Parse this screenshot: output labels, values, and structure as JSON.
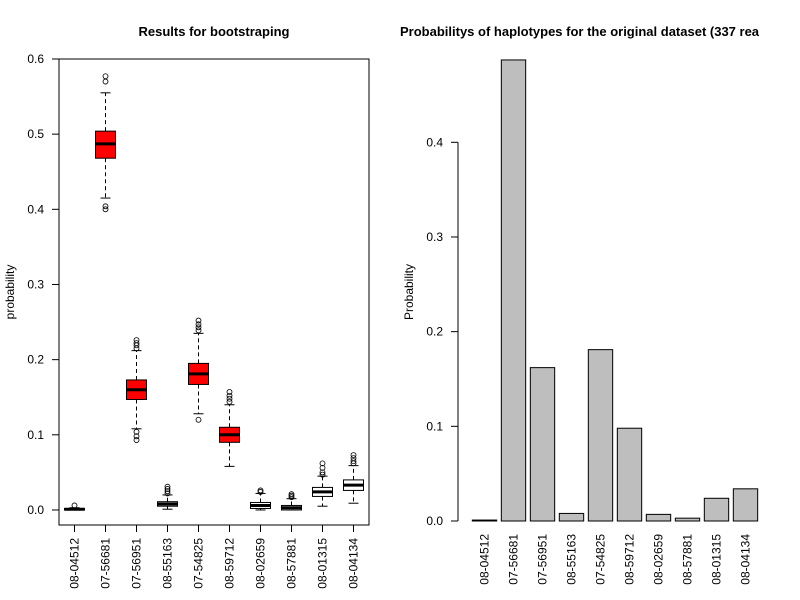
{
  "chart_data": [
    {
      "type": "box",
      "title": "Results for bootstraping",
      "xlabel": "",
      "ylabel": "probability",
      "ylim": [
        -0.02,
        0.6
      ],
      "yticks": [
        0.0,
        0.1,
        0.2,
        0.3,
        0.4,
        0.5,
        0.6
      ],
      "ytick_labels": [
        "0.0",
        "0.1",
        "0.2",
        "0.3",
        "0.4",
        "0.5",
        "0.6"
      ],
      "categories": [
        "08-04512",
        "07-56681",
        "07-56951",
        "08-55163",
        "07-54825",
        "08-59712",
        "08-02659",
        "08-57881",
        "08-01315",
        "08-04134"
      ],
      "fill_colors": [
        "#ffffff",
        "#ff0000",
        "#ff0000",
        "#ffffff",
        "#ff0000",
        "#ff0000",
        "#ffffff",
        "#ffffff",
        "#ffffff",
        "#ffffff"
      ],
      "boxes": [
        {
          "whisker_low": 0.0,
          "q1": 0.0,
          "median": 0.001,
          "q3": 0.002,
          "whisker_high": 0.003,
          "outliers": [
            0.006
          ]
        },
        {
          "whisker_low": 0.415,
          "q1": 0.468,
          "median": 0.487,
          "q3": 0.504,
          "whisker_high": 0.555,
          "outliers": [
            0.4,
            0.404,
            0.57,
            0.577
          ]
        },
        {
          "whisker_low": 0.108,
          "q1": 0.147,
          "median": 0.16,
          "q3": 0.173,
          "whisker_high": 0.212,
          "outliers": [
            0.093,
            0.098,
            0.104,
            0.215,
            0.219,
            0.222,
            0.226
          ]
        },
        {
          "whisker_low": 0.001,
          "q1": 0.005,
          "median": 0.008,
          "q3": 0.011,
          "whisker_high": 0.02,
          "outliers": [
            0.022,
            0.025,
            0.028,
            0.031
          ]
        },
        {
          "whisker_low": 0.128,
          "q1": 0.167,
          "median": 0.181,
          "q3": 0.195,
          "whisker_high": 0.235,
          "outliers": [
            0.12,
            0.239,
            0.243,
            0.247,
            0.252
          ]
        },
        {
          "whisker_low": 0.058,
          "q1": 0.09,
          "median": 0.1,
          "q3": 0.11,
          "whisker_high": 0.14,
          "outliers": [
            0.144,
            0.148,
            0.152,
            0.157
          ]
        },
        {
          "whisker_low": 0.0,
          "q1": 0.002,
          "median": 0.006,
          "q3": 0.01,
          "whisker_high": 0.022,
          "outliers": [
            0.024,
            0.026
          ]
        },
        {
          "whisker_low": 0.0,
          "q1": 0.0,
          "median": 0.003,
          "q3": 0.006,
          "whisker_high": 0.015,
          "outliers": [
            0.017,
            0.019,
            0.021
          ]
        },
        {
          "whisker_low": 0.005,
          "q1": 0.018,
          "median": 0.024,
          "q3": 0.03,
          "whisker_high": 0.045,
          "outliers": [
            0.047,
            0.05,
            0.056,
            0.062
          ]
        },
        {
          "whisker_low": 0.009,
          "q1": 0.026,
          "median": 0.033,
          "q3": 0.04,
          "whisker_high": 0.059,
          "outliers": [
            0.062,
            0.065,
            0.069,
            0.073
          ]
        }
      ]
    },
    {
      "type": "bar",
      "title": "Probabilitys of haplotypes for the original dataset (337 rea",
      "xlabel": "",
      "ylabel": "Probability",
      "ylim": [
        0.0,
        0.488
      ],
      "yticks": [
        0.0,
        0.1,
        0.2,
        0.3,
        0.4
      ],
      "ytick_labels": [
        "0.0",
        "0.1",
        "0.2",
        "0.3",
        "0.4"
      ],
      "categories": [
        "08-04512",
        "07-56681",
        "07-56951",
        "08-55163",
        "07-54825",
        "08-59712",
        "08-02659",
        "08-57881",
        "08-01315",
        "08-04134"
      ],
      "values": [
        0.001,
        0.487,
        0.162,
        0.008,
        0.181,
        0.098,
        0.007,
        0.003,
        0.024,
        0.034
      ],
      "bar_color": "#bebebe"
    }
  ]
}
